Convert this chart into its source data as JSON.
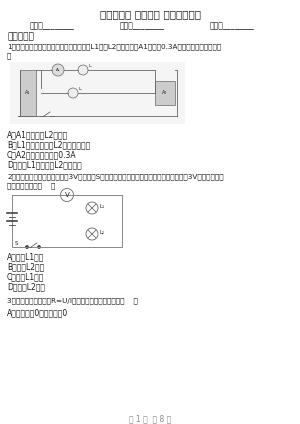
{
  "title": "九年级物理 第十一章 简单电路试题",
  "info_fields": [
    "姓名：________",
    "班级：________",
    "成绩：________"
  ],
  "section1": "一、单选题",
  "q1_line1": "1．如图所示，开关闭合后，两灯均发光且L1灯比L2亮，电流表A1示数为0.3A，下列判断正确的是（",
  "q1_line2": "）",
  "q1_opts": [
    "A．A1测的是灯L2的电流",
    "B．L1两端的电压比L2两端的电压大",
    "C．A2的示数一定大于0.3A",
    "D．通过L1的电流比L2的电流小"
  ],
  "q2_line1": "2．如图所示电路，电源电压为3V，当开关S闭合后，只有一盏灯泡发光，电压表的示数为3V，产生这一现",
  "q2_line2": "象的原因可能是（    ）",
  "q2_opts": [
    "A．灯泡L1短路",
    "B．灯泡L2短路",
    "C．灯泡L1断路",
    "D．灯泡L2断路"
  ],
  "q3_line": "3．从欧姆定律得导体R=U/I，下列说法符合题意的是（    ）",
  "q3_opts": [
    "A．当电压为0时，电阻为0"
  ],
  "footer": "第 1 页  共 8 页",
  "bg_color": "#ffffff",
  "text_color": "#1a1a1a",
  "light_text": "#555555",
  "wire_color": "#666666",
  "diagram_fill": "#e8e8e8"
}
